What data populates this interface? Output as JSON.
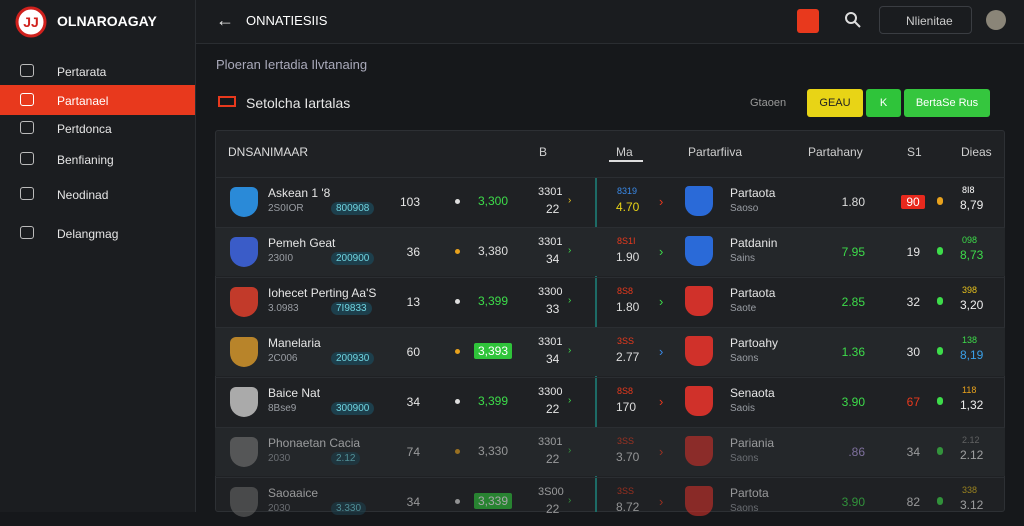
{
  "header": {
    "brand": "OLNAROAGAY",
    "page_title": "ONNATIESIIS",
    "search_placeholder": "Nlienitae"
  },
  "sidebar": {
    "items": [
      "Pertarata",
      "Partanael",
      "Pertdonca",
      "Benfianing",
      "Neodinad",
      "Delangmag"
    ]
  },
  "breadcrumb": "Ploeran Iertadia Ilvtanaing",
  "section": {
    "title": "Setolcha Iartalas",
    "filter_label": "Gtaoen",
    "buttons": [
      "GEAU",
      "K",
      "BertaSe Rus"
    ]
  },
  "table": {
    "columns": [
      "DNSANIMAAR",
      "B",
      "Ma",
      "Partarfiiva",
      "Partahany",
      "S1",
      "Dieas"
    ],
    "rows": [
      {
        "team": "Askean 1 '8",
        "sub": "2S0IOR",
        "tag": "800908",
        "c1": "103",
        "c2": "3,300",
        "c3a": "3301",
        "c3b": "22",
        "c4a": "8319",
        "c4b": "4.70",
        "team2": "Partaota",
        "sub2": "Saoso",
        "c5": "1.80",
        "c6": "90",
        "c7a": "8I8",
        "c7b": "8,79"
      },
      {
        "team": "Pemeh Geat",
        "sub": "230I0",
        "tag": "200900",
        "c1": "36",
        "c2": "3,380",
        "c3a": "3301",
        "c3b": "34",
        "c4a": "8S1I",
        "c4b": "1.90",
        "team2": "Patdanin",
        "sub2": "Sains",
        "c5": "7.95",
        "c6": "19",
        "c7a": "098",
        "c7b": "8,73"
      },
      {
        "team": "Iohecet Perting Aa'S",
        "sub": "3.0983",
        "tag": "7I9833",
        "c1": "13",
        "c2": "3,399",
        "c3a": "3300",
        "c3b": "33",
        "c4a": "8S8",
        "c4b": "1.80",
        "team2": "Partaota",
        "sub2": "Saote",
        "c5": "2.85",
        "c6": "32",
        "c7a": "398",
        "c7b": "3,20"
      },
      {
        "team": "Manelaria",
        "sub": "2C006",
        "tag": "200930",
        "c1": "60",
        "c2": "3,393",
        "c3a": "3301",
        "c3b": "34",
        "c4a": "3SS",
        "c4b": "2.77",
        "team2": "Partoahy",
        "sub2": "Saons",
        "c5": "1.36",
        "c6": "30",
        "c7a": "138",
        "c7b": "8,19"
      },
      {
        "team": "Baice Nat",
        "sub": "8Bse9",
        "tag": "300900",
        "c1": "34",
        "c2": "3,399",
        "c3a": "3300",
        "c3b": "22",
        "c4a": "8S8",
        "c4b": "170",
        "team2": "Senaota",
        "sub2": "Saois",
        "c5": "3.90",
        "c6": "67",
        "c7a": "118",
        "c7b": "1,32"
      },
      {
        "team": "Phonaetan Cacia",
        "sub": "2030",
        "tag": "2.12",
        "c1": "74",
        "c2": "3,330",
        "c3a": "3301",
        "c3b": "22",
        "c4a": "3SS",
        "c4b": "3.70",
        "team2": "Pariania",
        "sub2": "Saons",
        "c5": ".86",
        "c6": "34",
        "c7a": "2.12",
        "c7b": "2.12"
      },
      {
        "team": "Saoaaice",
        "sub": "2030",
        "tag": "3.330",
        "c1": "34",
        "c2": "3,339",
        "c3a": "3S00",
        "c3b": "22",
        "c4a": "3SS",
        "c4b": "8.72",
        "team2": "Partota",
        "sub2": "Saons",
        "c5": "3.90",
        "c6": "82",
        "c7a": "338",
        "c7b": "3.12"
      }
    ]
  }
}
